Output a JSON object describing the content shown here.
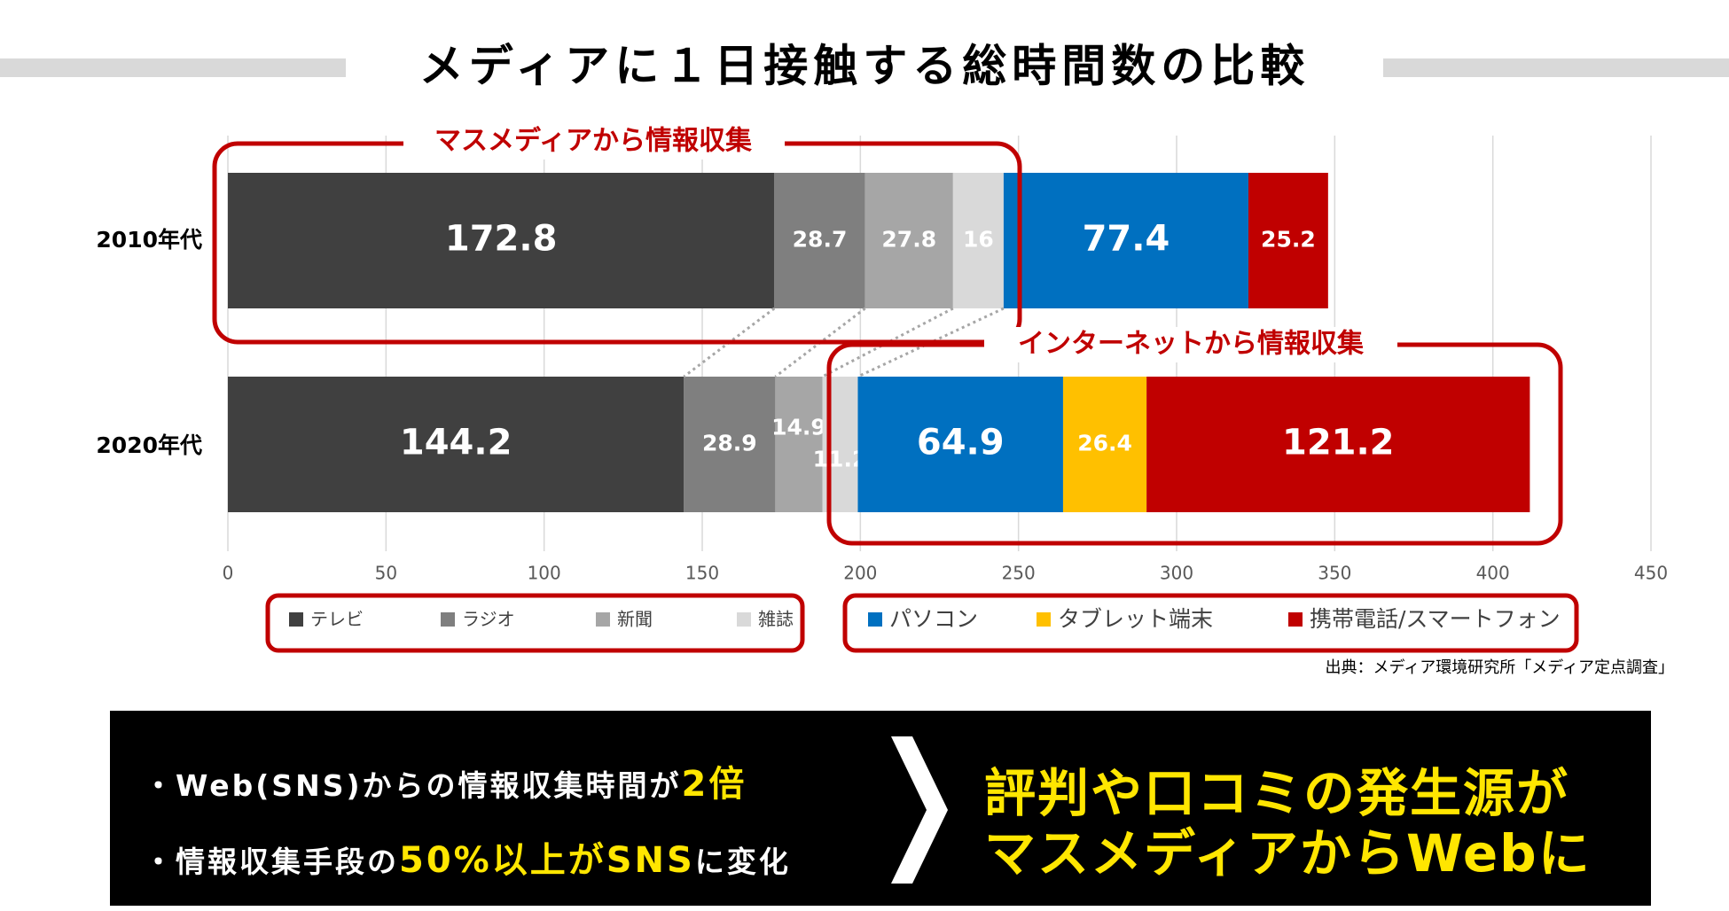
{
  "chart_data": {
    "type": "stacked-barh",
    "title": "メディアに１日接触する総時間数の比較",
    "categories": [
      "2010年代",
      "2020年代"
    ],
    "series": [
      {
        "name": "テレビ",
        "color": "#404040",
        "values": [
          172.8,
          144.2
        ]
      },
      {
        "name": "ラジオ",
        "color": "#7f7f7f",
        "values": [
          28.7,
          28.9
        ]
      },
      {
        "name": "新聞",
        "color": "#a6a6a6",
        "values": [
          27.8,
          14.9
        ]
      },
      {
        "name": "雑誌",
        "color": "#d9d9d9",
        "values": [
          16,
          11.2
        ]
      },
      {
        "name": "パソコン",
        "color": "#0070c0",
        "values": [
          77.4,
          64.9
        ]
      },
      {
        "name": "タブレット端末",
        "color": "#ffc000",
        "values": [
          null,
          26.4
        ]
      },
      {
        "name": "携帯電話/スマートフォン",
        "color": "#c00000",
        "values": [
          25.2,
          121.2
        ]
      }
    ],
    "xlim": [
      0,
      450
    ],
    "xticks": [
      0,
      50,
      100,
      150,
      200,
      250,
      300,
      350,
      400,
      450
    ],
    "grid": true,
    "annotations": [
      "マスメディアから情報収集",
      "インターネットから情報収集"
    ],
    "source": "出典：メディア環境研究所「メディア定点調査」"
  },
  "panel": {
    "line1": [
      "・Web(SNS)からの情報収集時間が",
      "2倍"
    ],
    "line2": [
      "・情報収集手段の",
      "50%以上がSNS",
      "に変化"
    ],
    "conclusion": [
      "評判や口コミの発生源が",
      "マスメディアからWebに"
    ]
  }
}
